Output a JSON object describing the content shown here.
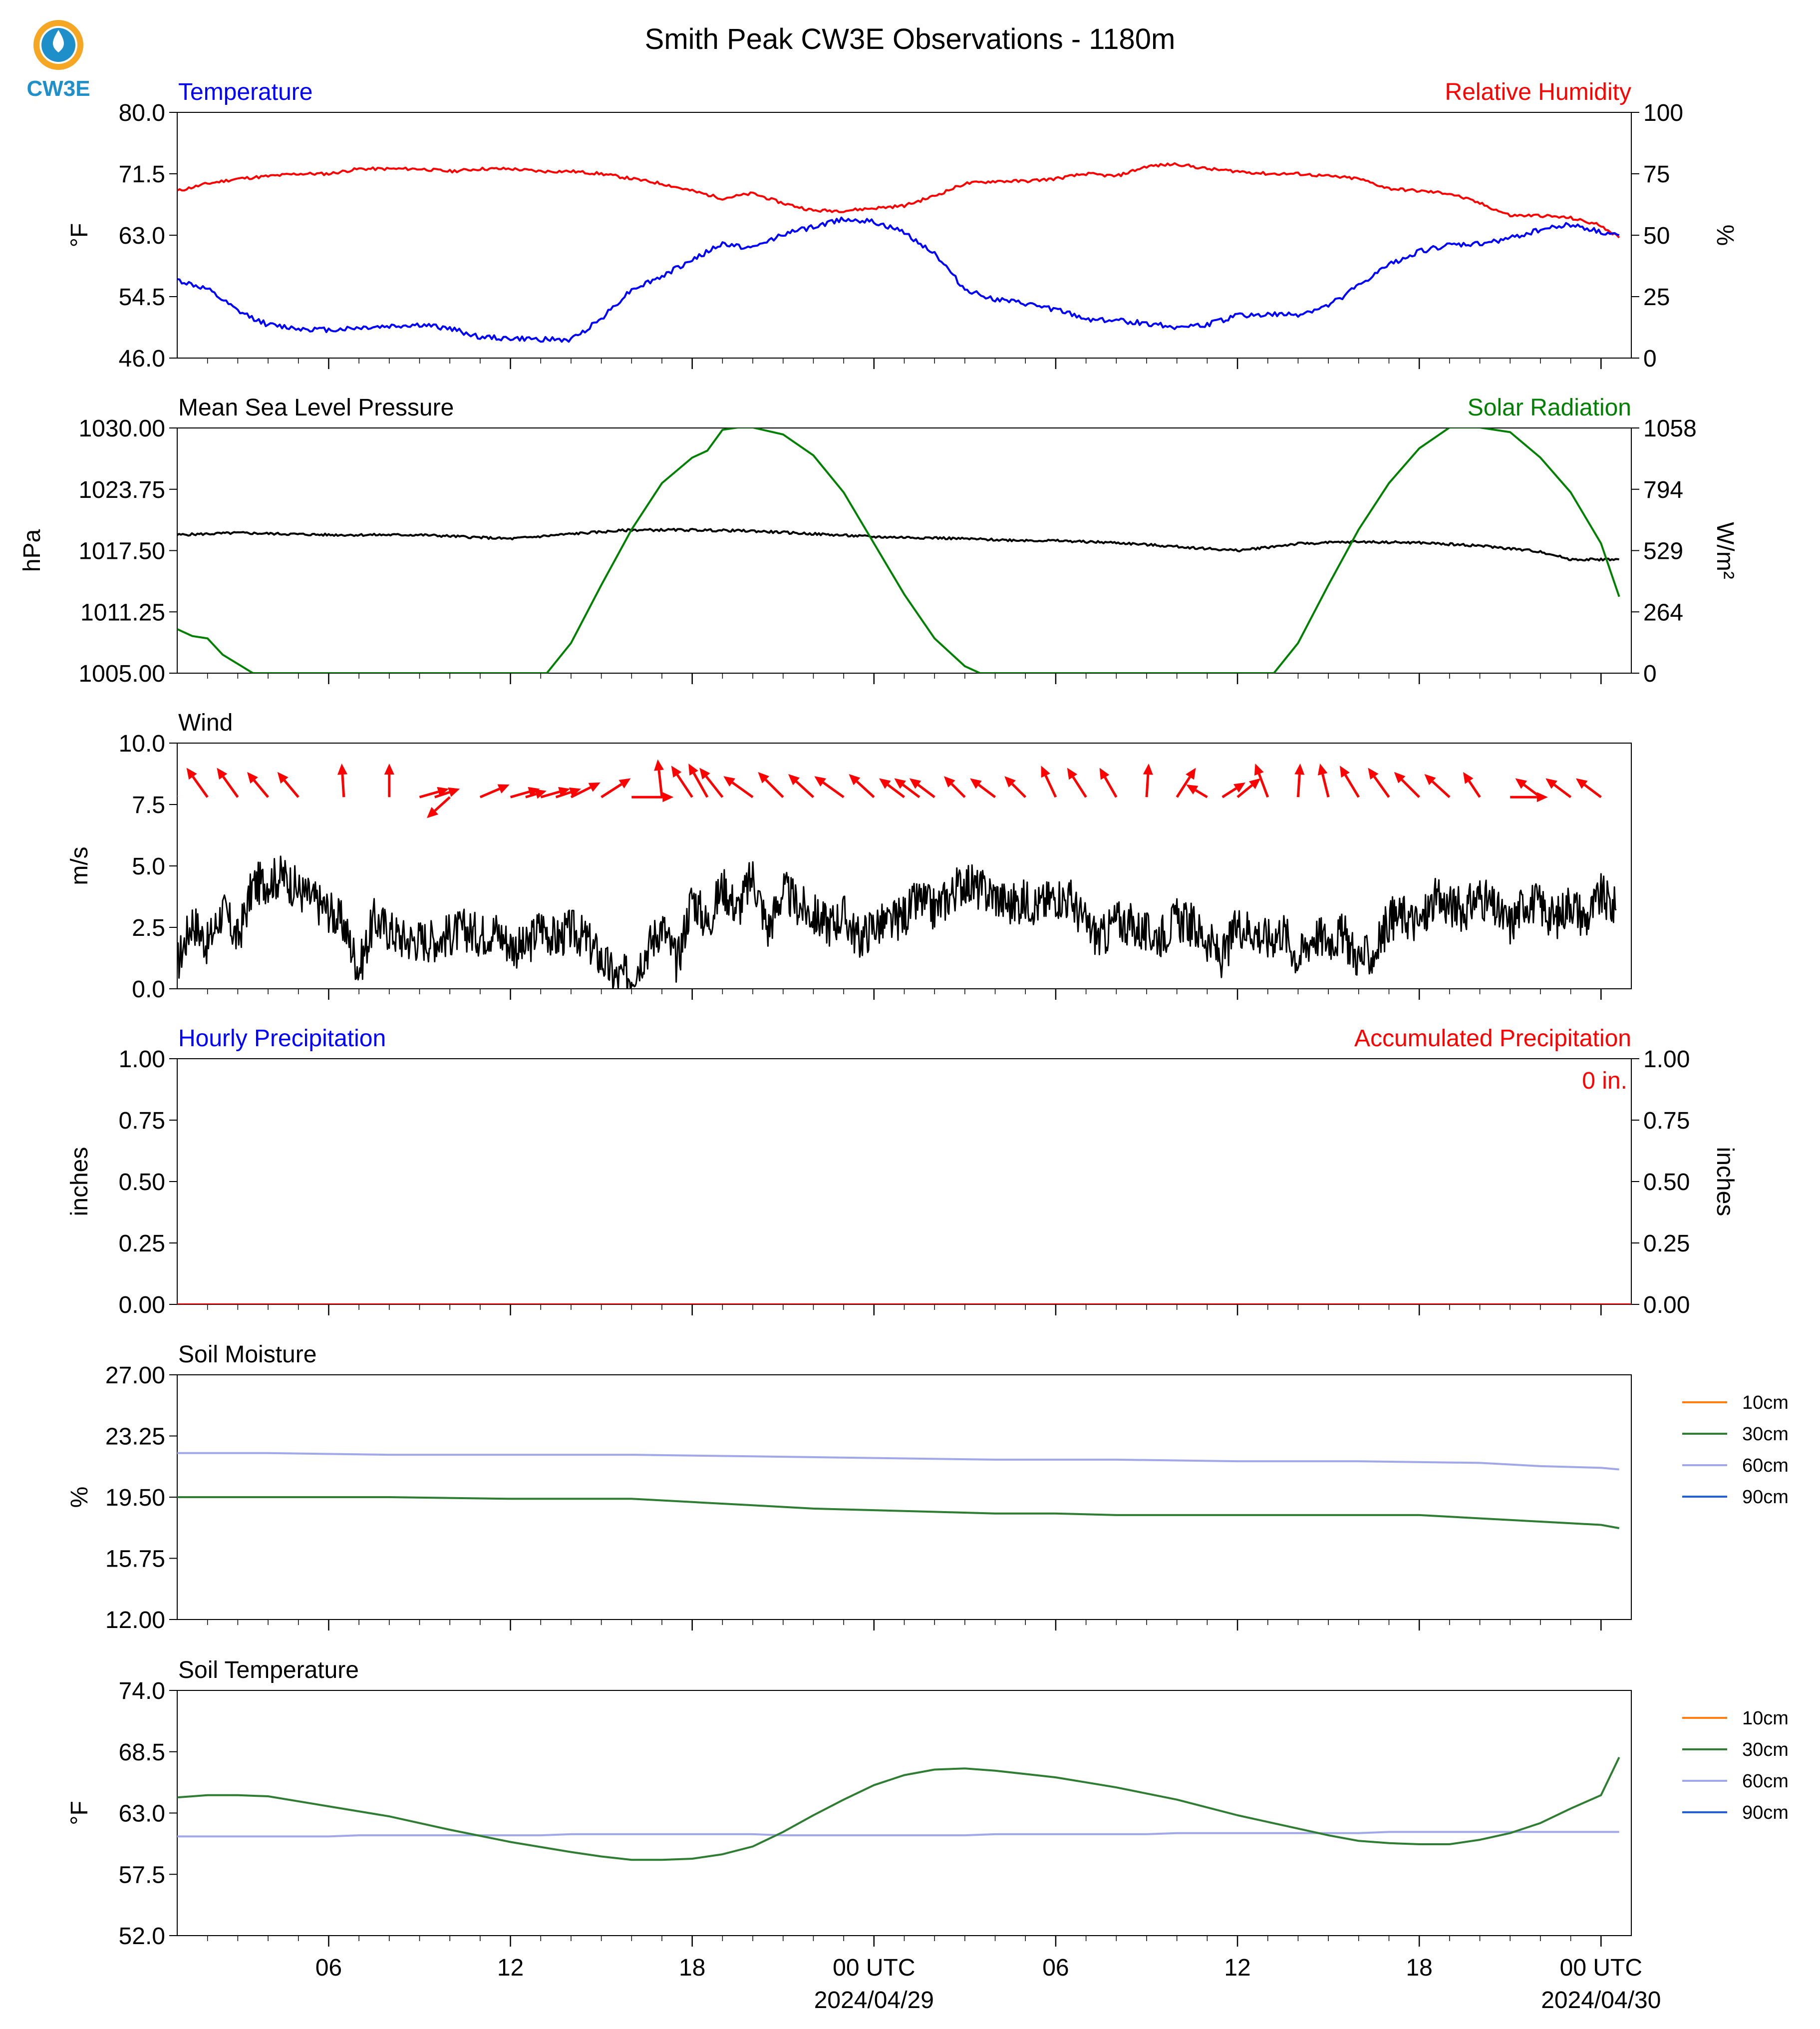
{
  "title": "Smith Peak CW3E Observations - 1180m",
  "logo": {
    "text": "CW3E",
    "color_blue": "#1f8fc9",
    "color_orange": "#f5a623",
    "icon": "cw3e-drop-logo"
  },
  "colors": {
    "red": "#ff0000",
    "blue": "#0000ff",
    "green": "#008000",
    "black": "#000000",
    "soil_10cm": "#ff7f0e",
    "soil_30cm": "#2e7d32",
    "soil_60cm": "#a0a8e8",
    "soil_90cm": "#1f5fe0"
  },
  "x_axis": {
    "ticks": [
      "06",
      "12",
      "18",
      "00 UTC",
      "06",
      "12",
      "18",
      "00 UTC"
    ],
    "tick_hours": [
      6,
      12,
      18,
      24,
      30,
      36,
      42,
      48
    ],
    "dates": [
      "2024/04/29",
      "2024/04/30"
    ],
    "range_hours": [
      1,
      49
    ]
  },
  "chart_data": [
    {
      "type": "line",
      "title_left": "Temperature",
      "title_right": "Relative Humidity",
      "ylabel_left": "°F",
      "ylabel_right": "%",
      "ylim_left": [
        46.0,
        80.0
      ],
      "yticks_left": [
        "80.0",
        "71.5",
        "63.0",
        "54.5",
        "46.0"
      ],
      "ylim_right": [
        0,
        100
      ],
      "yticks_right": [
        "100",
        "75",
        "50",
        "25",
        "0"
      ],
      "x_hours": [
        1,
        2,
        3,
        4,
        5,
        6,
        7,
        8,
        9,
        10,
        11,
        12,
        13,
        14,
        15,
        16,
        17,
        18,
        19,
        20,
        21,
        22,
        23,
        24,
        25,
        26,
        27,
        28,
        29,
        30,
        31,
        32,
        33,
        34,
        35,
        36,
        37,
        38,
        39,
        40,
        41,
        42,
        43,
        44,
        45,
        46,
        47,
        48,
        48.6
      ],
      "series": [
        {
          "axis": "right",
          "color": "red",
          "values": [
            68,
            71,
            73,
            74,
            75,
            75,
            77,
            77,
            77,
            76,
            77,
            77,
            76,
            76,
            75,
            73,
            71,
            68,
            65,
            67,
            63,
            60,
            60,
            61,
            62,
            66,
            71,
            72,
            72,
            73,
            75,
            74,
            78,
            79,
            77,
            76,
            75,
            75,
            74,
            73,
            69,
            68,
            67,
            63,
            58,
            58,
            57,
            54,
            49
          ]
        },
        {
          "axis": "left",
          "color": "blue",
          "values": [
            56.8,
            55.5,
            52.5,
            50.6,
            50.1,
            49.9,
            50.2,
            50.4,
            50.6,
            50.1,
            48.9,
            48.7,
            48.6,
            48.5,
            51.5,
            55.5,
            57.3,
            59.6,
            61.8,
            61.2,
            63.2,
            64.1,
            65.3,
            64.8,
            63.4,
            60.5,
            55.5,
            54.1,
            53.5,
            52.7,
            51.4,
            51.2,
            50.8,
            50.3,
            50.6,
            51.9,
            52.0,
            52.0,
            53.2,
            56.0,
            58.9,
            60.8,
            61.6,
            61.8,
            62.6,
            63.8,
            64.5,
            63.4,
            63.0
          ]
        }
      ]
    },
    {
      "type": "line",
      "title_left": "Mean Sea Level Pressure",
      "title_right": "Solar Radiation",
      "ylabel_left": "hPa",
      "ylabel_right": "W/m²",
      "ylim_left": [
        1005.0,
        1030.0
      ],
      "yticks_left": [
        "1030.00",
        "1023.75",
        "1017.50",
        "1011.25",
        "1005.00"
      ],
      "ylim_right": [
        0,
        1058
      ],
      "yticks_right": [
        "1058",
        "794",
        "529",
        "264",
        "0"
      ],
      "series": [
        {
          "axis": "left",
          "color": "black",
          "x_hours": [
            1,
            3,
            6,
            9,
            12,
            14,
            16,
            18,
            20,
            22,
            24,
            26,
            28,
            30,
            32,
            34,
            36,
            38,
            40,
            42,
            44,
            46,
            47,
            48,
            48.6
          ],
          "values": [
            1019.1,
            1019.3,
            1019.1,
            1019.1,
            1018.7,
            1019.2,
            1019.6,
            1019.6,
            1019.5,
            1019.2,
            1018.9,
            1018.8,
            1018.6,
            1018.5,
            1018.3,
            1017.9,
            1017.5,
            1018.2,
            1018.4,
            1018.3,
            1018.0,
            1017.4,
            1016.6,
            1016.6,
            1016.6
          ]
        },
        {
          "axis": "right",
          "color": "green",
          "x_hours": [
            1,
            1.5,
            2,
            2.5,
            3,
            3.5,
            13.2,
            14,
            15,
            16,
            17,
            18,
            18.5,
            19,
            19.5,
            20,
            21,
            22,
            23,
            24,
            25,
            26,
            27,
            27.5,
            37.2,
            38,
            39,
            40,
            41,
            42,
            43,
            44,
            45,
            46,
            47,
            48,
            48.6
          ],
          "values": [
            190,
            160,
            150,
            80,
            40,
            0,
            0,
            130,
            380,
            620,
            820,
            930,
            960,
            1050,
            1060,
            1060,
            1030,
            940,
            780,
            560,
            340,
            150,
            30,
            0,
            0,
            130,
            380,
            620,
            820,
            970,
            1060,
            1060,
            1040,
            930,
            780,
            560,
            330
          ]
        }
      ]
    },
    {
      "type": "line",
      "title_left": "Wind",
      "ylabel_left": "m/s",
      "ylim_left": [
        0.0,
        10.0
      ],
      "yticks_left": [
        "10.0",
        "7.5",
        "5.0",
        "2.5",
        "0.0"
      ],
      "series": [
        {
          "axis": "left",
          "color": "black",
          "name": "wind speed",
          "x_hours": [
            1,
            1.5,
            2,
            2.5,
            3,
            3.5,
            4,
            4.5,
            5,
            5.5,
            6,
            6.5,
            7,
            7.5,
            8,
            8.5,
            9,
            9.5,
            10,
            10.5,
            11,
            11.5,
            12,
            12.5,
            13,
            13.5,
            14,
            14.5,
            15,
            15.5,
            16,
            16.5,
            17,
            17.5,
            18,
            18.5,
            19,
            19.5,
            20,
            20.5,
            21,
            21.5,
            22,
            22.5,
            23,
            23.5,
            24,
            24.5,
            25,
            25.5,
            26,
            26.5,
            27,
            27.5,
            28,
            28.5,
            29,
            29.5,
            30,
            30.5,
            31,
            31.5,
            32,
            32.5,
            33,
            33.5,
            34,
            34.5,
            35,
            35.5,
            36,
            36.5,
            37,
            37.5,
            38,
            38.5,
            39,
            39.5,
            40,
            40.5,
            41,
            41.5,
            42,
            42.5,
            43,
            43.5,
            44,
            44.5,
            45,
            45.5,
            46,
            46.5,
            47,
            47.5,
            48,
            48.5
          ],
          "values": [
            1.0,
            2.8,
            1.8,
            3.2,
            2.0,
            4.2,
            4.4,
            4.6,
            4.0,
            3.6,
            3.2,
            2.6,
            0.8,
            2.8,
            2.4,
            2.0,
            2.0,
            2.0,
            2.2,
            2.4,
            2.2,
            2.4,
            1.8,
            1.6,
            2.6,
            2.0,
            2.4,
            2.0,
            1.2,
            0.4,
            0.6,
            1.6,
            2.6,
            1.0,
            3.8,
            2.6,
            4.2,
            3.2,
            4.6,
            2.4,
            4.0,
            3.4,
            3.0,
            2.6,
            3.0,
            2.0,
            2.6,
            2.6,
            3.0,
            3.6,
            3.2,
            3.8,
            4.4,
            4.0,
            3.8,
            3.4,
            3.6,
            3.4,
            3.8,
            3.6,
            2.6,
            2.0,
            2.8,
            2.6,
            2.2,
            2.2,
            2.8,
            2.6,
            2.0,
            1.2,
            2.6,
            2.4,
            2.0,
            2.4,
            1.2,
            2.2,
            2.0,
            2.2,
            1.2,
            1.4,
            2.8,
            3.0,
            2.6,
            3.6,
            3.4,
            3.2,
            3.8,
            3.2,
            2.6,
            3.6,
            3.4,
            2.8,
            3.6,
            2.8,
            3.8,
            3.2
          ]
        }
      ],
      "arrows": {
        "baseline": 7.8,
        "x_hours": [
          1,
          2,
          3,
          4,
          5,
          6.5,
          8,
          9,
          9.5,
          10,
          11,
          12,
          12.5,
          13,
          13.5,
          14,
          15,
          16,
          17,
          18,
          18.5,
          19,
          20,
          21,
          22,
          23,
          24,
          25,
          25.5,
          26,
          27,
          28,
          29,
          30,
          31,
          32,
          33,
          34,
          35,
          35.5,
          36,
          37,
          38,
          39,
          40,
          41,
          42,
          43,
          44,
          45,
          46,
          47,
          48
        ],
        "dx": [
          -0.55,
          -0.5,
          -0.5,
          -0.5,
          -0.5,
          -0.05,
          0,
          0.7,
          0.6,
          -0.55,
          0.7,
          0.7,
          0.5,
          0.7,
          0.6,
          0.7,
          0.7,
          1.0,
          -0.1,
          -0.5,
          -0.45,
          -0.55,
          -0.7,
          -0.6,
          -0.6,
          -0.7,
          -0.6,
          -0.6,
          -0.6,
          -0.6,
          -0.5,
          -0.6,
          -0.5,
          -0.35,
          -0.45,
          -0.4,
          0.05,
          0.45,
          -0.5,
          0.55,
          0.55,
          -0.3,
          0.05,
          -0.2,
          -0.45,
          -0.5,
          -0.6,
          -0.6,
          -0.4,
          0.9,
          -0.6,
          -0.6,
          -0.6
        ],
        "dy": [
          0.6,
          0.7,
          0.7,
          0.6,
          0.6,
          0.8,
          0.8,
          0.2,
          0.2,
          -0.5,
          0.3,
          0.2,
          0.15,
          0.2,
          0.2,
          0.35,
          0.45,
          0,
          0.9,
          0.75,
          0.8,
          0.7,
          0.5,
          0.6,
          0.55,
          0.5,
          0.55,
          0.45,
          0.45,
          0.45,
          0.5,
          0.45,
          0.5,
          0.75,
          0.7,
          0.7,
          0.8,
          0.7,
          0.3,
          0.35,
          0.45,
          0.8,
          0.8,
          0.8,
          0.75,
          0.7,
          0.6,
          0.55,
          0.6,
          0,
          0.45,
          0.45,
          0.45
        ]
      }
    },
    {
      "type": "line",
      "title_left": "Hourly Precipitation",
      "title_right": "Accumulated Precipitation",
      "ylabel_left": "inches",
      "ylabel_right": "inches",
      "ylim_left": [
        0.0,
        1.0
      ],
      "yticks_left": [
        "1.00",
        "0.75",
        "0.50",
        "0.25",
        "0.00"
      ],
      "ylim_right": [
        0.0,
        1.0
      ],
      "yticks_right": [
        "1.00",
        "0.75",
        "0.50",
        "0.25",
        "0.00"
      ],
      "annotation": "0 in.",
      "series": [
        {
          "axis": "left",
          "color": "blue",
          "x_hours": [
            1,
            49
          ],
          "values": [
            0,
            0
          ]
        },
        {
          "axis": "right",
          "color": "red",
          "x_hours": [
            1,
            49
          ],
          "values": [
            0,
            0
          ]
        }
      ]
    },
    {
      "type": "line",
      "title_left": "Soil Moisture",
      "ylabel_left": "%",
      "ylim_left": [
        12.0,
        27.0
      ],
      "yticks_left": [
        "27.00",
        "23.25",
        "19.50",
        "15.75",
        "12.00"
      ],
      "legend": [
        "10cm",
        "30cm",
        "60cm",
        "90cm"
      ],
      "series": [
        {
          "name": "60cm",
          "color": "soil_60cm",
          "x_hours": [
            1,
            4,
            8,
            12,
            16,
            20,
            24,
            28,
            32,
            36,
            40,
            44,
            46,
            48,
            48.6
          ],
          "values": [
            22.2,
            22.2,
            22.1,
            22.1,
            22.1,
            22.0,
            21.9,
            21.8,
            21.8,
            21.7,
            21.7,
            21.6,
            21.4,
            21.3,
            21.2
          ]
        },
        {
          "name": "30cm",
          "color": "soil_30cm",
          "x_hours": [
            1,
            4,
            8,
            12,
            16,
            18,
            20,
            22,
            24,
            26,
            28,
            30,
            32,
            34,
            36,
            38,
            40,
            42,
            44,
            46,
            48,
            48.6
          ],
          "values": [
            19.5,
            19.5,
            19.5,
            19.4,
            19.4,
            19.2,
            19.0,
            18.8,
            18.7,
            18.6,
            18.5,
            18.5,
            18.4,
            18.4,
            18.4,
            18.4,
            18.4,
            18.4,
            18.2,
            18.0,
            17.8,
            17.6
          ]
        }
      ]
    },
    {
      "type": "line",
      "title_left": "Soil Temperature",
      "ylabel_left": "°F",
      "ylim_left": [
        52.0,
        74.0
      ],
      "yticks_left": [
        "74.0",
        "68.5",
        "63.0",
        "57.5",
        "52.0"
      ],
      "legend": [
        "10cm",
        "30cm",
        "60cm",
        "90cm"
      ],
      "series": [
        {
          "name": "60cm",
          "color": "soil_60cm",
          "x_hours": [
            1,
            6,
            7,
            13,
            14,
            20,
            21,
            27,
            28,
            33,
            34,
            40,
            41,
            48.6
          ],
          "values": [
            60.9,
            60.9,
            61.0,
            61.0,
            61.1,
            61.1,
            61.0,
            61.0,
            61.1,
            61.1,
            61.2,
            61.2,
            61.3,
            61.3
          ]
        },
        {
          "name": "30cm",
          "color": "soil_30cm",
          "x_hours": [
            1,
            2,
            3,
            4,
            6,
            8,
            10,
            12,
            14,
            15,
            16,
            17,
            18,
            19,
            20,
            21,
            22,
            23,
            24,
            25,
            26,
            27,
            28,
            30,
            32,
            34,
            36,
            38,
            39,
            40,
            41,
            42,
            43,
            44,
            45,
            46,
            47,
            48,
            48.6
          ],
          "values": [
            64.4,
            64.6,
            64.6,
            64.5,
            63.6,
            62.7,
            61.5,
            60.4,
            59.5,
            59.1,
            58.8,
            58.8,
            58.9,
            59.3,
            60.0,
            61.3,
            62.8,
            64.2,
            65.5,
            66.4,
            66.9,
            67.0,
            66.8,
            66.2,
            65.3,
            64.2,
            62.8,
            61.6,
            61.0,
            60.5,
            60.3,
            60.2,
            60.2,
            60.6,
            61.2,
            62.1,
            63.4,
            64.6,
            68.0
          ]
        }
      ]
    }
  ]
}
